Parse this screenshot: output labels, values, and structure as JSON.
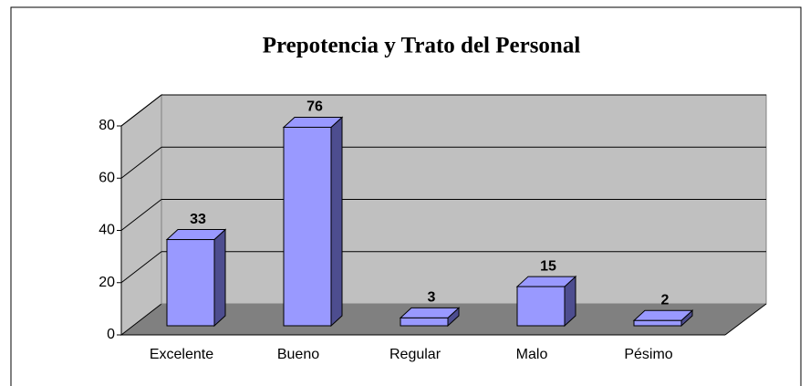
{
  "chart_data": {
    "type": "bar",
    "title": "Prepotencia y Trato del Personal",
    "categories": [
      "Excelente",
      "Bueno",
      "Regular",
      "Malo",
      "Pésimo"
    ],
    "values": [
      33,
      76,
      3,
      15,
      2
    ],
    "color": "#9999ff",
    "ylim": [
      0,
      80
    ],
    "yticks": [
      0,
      20,
      40,
      60,
      80
    ],
    "grid": true
  }
}
